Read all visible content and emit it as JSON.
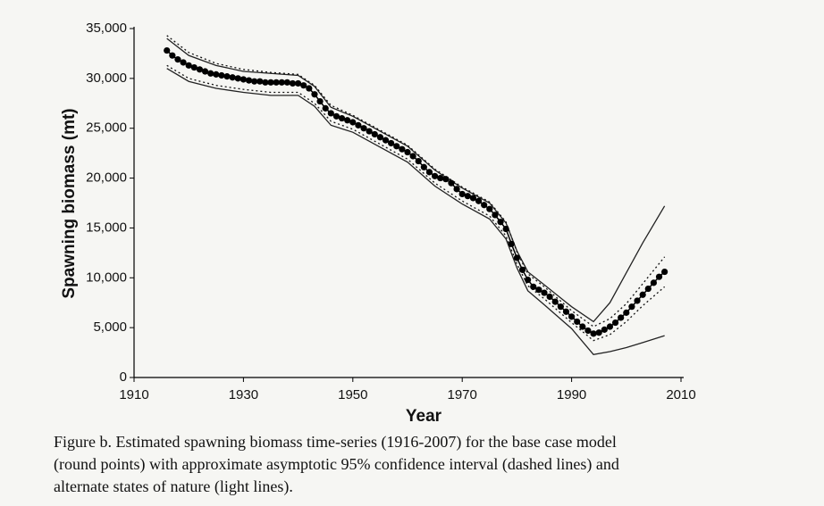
{
  "chart_data": {
    "type": "line",
    "xlabel": "Year",
    "ylabel": "Spawning biomass (mt)",
    "caption": [
      "Figure b. Estimated spawning biomass time-series (1916-2007) for the base case model",
      "(round points) with approximate asymptotic 95% confidence interval (dashed lines) and",
      "alternate states of nature (light lines)."
    ],
    "xlim": [
      1910,
      2010
    ],
    "xticks": [
      1910,
      1930,
      1950,
      1970,
      1990,
      2010
    ],
    "ylim": [
      0,
      35000
    ],
    "yticks": [
      0,
      {
        "value": 5000,
        "label": "5,000"
      },
      {
        "value": 10000,
        "label": "10,000"
      },
      {
        "value": 15000,
        "label": "15,000"
      },
      {
        "value": 20000,
        "label": "20,000"
      },
      {
        "value": 25000,
        "label": "25,000"
      },
      {
        "value": 30000,
        "label": "30,000"
      },
      {
        "value": 35000,
        "label": "35,000"
      }
    ],
    "series": [
      {
        "style": "light",
        "color": "#222222",
        "x": [
          1916,
          1920,
          1925,
          1930,
          1935,
          1940,
          1943,
          1946,
          1950,
          1955,
          1960,
          1965,
          1970,
          1975,
          1978,
          1980,
          1982,
          1985,
          1990,
          1994,
          1997,
          2000,
          2003,
          2007
        ],
        "values": [
          34000,
          32300,
          31300,
          30700,
          30500,
          30300,
          29200,
          27100,
          26200,
          24700,
          23200,
          20800,
          19000,
          17500,
          15500,
          12700,
          10600,
          9300,
          7100,
          5600,
          7500,
          10500,
          13500,
          17200
        ]
      },
      {
        "style": "light",
        "color": "#222222",
        "x": [
          1916,
          1920,
          1925,
          1930,
          1935,
          1940,
          1943,
          1946,
          1950,
          1955,
          1960,
          1965,
          1970,
          1975,
          1978,
          1980,
          1982,
          1985,
          1990,
          1994,
          1997,
          2000,
          2003,
          2007
        ],
        "values": [
          31000,
          29700,
          29000,
          28600,
          28300,
          28300,
          27200,
          25300,
          24600,
          23100,
          21600,
          19200,
          17400,
          15900,
          13900,
          11000,
          8700,
          7300,
          4900,
          2300,
          2600,
          3000,
          3500,
          4200
        ]
      },
      {
        "style": "dashed",
        "color": "#111111",
        "x": [
          1916,
          1920,
          1925,
          1930,
          1935,
          1940,
          1943,
          1946,
          1950,
          1955,
          1960,
          1965,
          1970,
          1975,
          1978,
          1980,
          1982,
          1985,
          1990,
          1994,
          1997,
          2000,
          2003,
          2007
        ],
        "values": [
          34300,
          32600,
          31500,
          30900,
          30600,
          30400,
          29300,
          27300,
          26300,
          24800,
          23300,
          20900,
          19100,
          17600,
          15600,
          12600,
          10400,
          9100,
          6700,
          5100,
          5900,
          7400,
          9400,
          12100
        ]
      },
      {
        "style": "dashed",
        "color": "#111111",
        "x": [
          1916,
          1920,
          1925,
          1930,
          1935,
          1940,
          1943,
          1946,
          1950,
          1955,
          1960,
          1965,
          1970,
          1975,
          1978,
          1980,
          1982,
          1985,
          1990,
          1994,
          1997,
          2000,
          2003,
          2007
        ],
        "values": [
          31300,
          30000,
          29300,
          28900,
          28600,
          28600,
          27500,
          25700,
          24900,
          23400,
          21900,
          19500,
          17700,
          16200,
          14200,
          11400,
          9200,
          7900,
          5500,
          3700,
          4300,
          5600,
          7200,
          9100
        ]
      },
      {
        "style": "points",
        "color": "#000000",
        "x": [
          1916,
          1917,
          1918,
          1919,
          1920,
          1921,
          1922,
          1923,
          1924,
          1925,
          1926,
          1927,
          1928,
          1929,
          1930,
          1931,
          1932,
          1933,
          1934,
          1935,
          1936,
          1937,
          1938,
          1939,
          1940,
          1941,
          1942,
          1943,
          1944,
          1945,
          1946,
          1947,
          1948,
          1949,
          1950,
          1951,
          1952,
          1953,
          1954,
          1955,
          1956,
          1957,
          1958,
          1959,
          1960,
          1961,
          1962,
          1963,
          1964,
          1965,
          1966,
          1967,
          1968,
          1969,
          1970,
          1971,
          1972,
          1973,
          1974,
          1975,
          1976,
          1977,
          1978,
          1979,
          1980,
          1981,
          1982,
          1983,
          1984,
          1985,
          1986,
          1987,
          1988,
          1989,
          1990,
          1991,
          1992,
          1993,
          1994,
          1995,
          1996,
          1997,
          1998,
          1999,
          2000,
          2001,
          2002,
          2003,
          2004,
          2005,
          2006,
          2007
        ],
        "values": [
          32800,
          32300,
          31900,
          31600,
          31300,
          31100,
          30900,
          30700,
          30500,
          30400,
          30300,
          30200,
          30100,
          30000,
          29900,
          29800,
          29700,
          29700,
          29600,
          29600,
          29600,
          29600,
          29600,
          29500,
          29500,
          29300,
          29000,
          28400,
          27700,
          27000,
          26500,
          26200,
          26000,
          25800,
          25600,
          25300,
          25000,
          24700,
          24400,
          24100,
          23800,
          23500,
          23200,
          22900,
          22600,
          22200,
          21700,
          21100,
          20600,
          20200,
          20000,
          19900,
          19500,
          18900,
          18400,
          18200,
          18000,
          17700,
          17300,
          16900,
          16300,
          15600,
          14900,
          13400,
          12000,
          10800,
          9800,
          9100,
          8800,
          8500,
          8100,
          7600,
          7100,
          6600,
          6100,
          5600,
          5100,
          4700,
          4400,
          4500,
          4800,
          5100,
          5500,
          6000,
          6500,
          7100,
          7700,
          8300,
          8900,
          9500,
          10100,
          10600
        ]
      }
    ]
  }
}
